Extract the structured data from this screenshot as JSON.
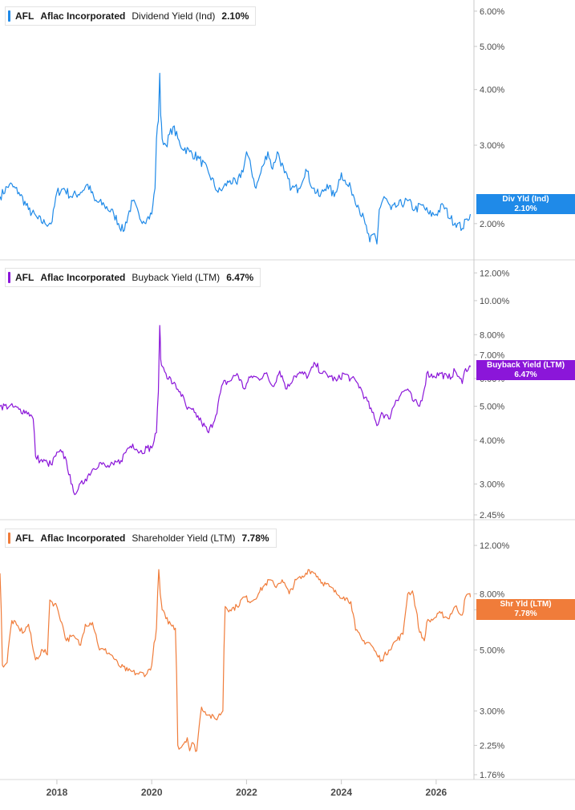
{
  "chart_data": [
    {
      "type": "line",
      "ticker": "AFL",
      "company": "Aflac Incorporated",
      "metric": "Dividend Yield (Ind)",
      "current_value": "2.10%",
      "badge": {
        "label": "Div Yld (Ind)",
        "value": "2.10%"
      },
      "color": "#1f8ae8",
      "yscale": "log",
      "ylim": [
        1.7,
        6.2
      ],
      "y_ticks": [
        {
          "value": 6,
          "label": "6.00%"
        },
        {
          "value": 5,
          "label": "5.00%"
        },
        {
          "value": 4,
          "label": "4.00%"
        },
        {
          "value": 3,
          "label": "3.00%"
        },
        {
          "value": 2,
          "label": "2.00%"
        }
      ],
      "x": [
        2016.8,
        2017.0,
        2017.2,
        2017.4,
        2017.6,
        2017.75,
        2017.9,
        2018.0,
        2018.15,
        2018.3,
        2018.5,
        2018.65,
        2018.8,
        2019.0,
        2019.2,
        2019.4,
        2019.6,
        2019.75,
        2019.9,
        2020.0,
        2020.07,
        2020.1,
        2020.14,
        2020.17,
        2020.19,
        2020.22,
        2020.3,
        2020.45,
        2020.6,
        2020.8,
        2021.0,
        2021.2,
        2021.4,
        2021.5,
        2021.65,
        2021.8,
        2021.95,
        2022.0,
        2022.2,
        2022.35,
        2022.45,
        2022.55,
        2022.65,
        2022.8,
        2022.95,
        2023.1,
        2023.25,
        2023.4,
        2023.55,
        2023.7,
        2023.85,
        2024.0,
        2024.1,
        2024.2,
        2024.35,
        2024.5,
        2024.6,
        2024.7,
        2024.75,
        2024.8,
        2024.9,
        2025.05,
        2025.2,
        2025.4,
        2025.55,
        2025.7,
        2025.85,
        2026.0,
        2026.15,
        2026.3,
        2026.45,
        2026.55,
        2026.65,
        2026.72
      ],
      "y": [
        2.3,
        2.45,
        2.35,
        2.15,
        2.05,
        2.0,
        2.02,
        2.35,
        2.4,
        2.3,
        2.35,
        2.45,
        2.25,
        2.2,
        2.1,
        1.92,
        2.25,
        2.05,
        2.05,
        2.1,
        2.4,
        3.1,
        3.4,
        4.35,
        3.5,
        3.1,
        3.0,
        3.3,
        3.0,
        2.9,
        2.8,
        2.6,
        2.35,
        2.4,
        2.5,
        2.45,
        2.7,
        2.9,
        2.4,
        2.7,
        2.9,
        2.65,
        2.9,
        2.6,
        2.4,
        2.4,
        2.65,
        2.4,
        2.3,
        2.45,
        2.3,
        2.6,
        2.45,
        2.4,
        2.2,
        2.0,
        1.82,
        1.9,
        1.8,
        2.15,
        2.3,
        2.15,
        2.2,
        2.25,
        2.15,
        2.2,
        2.1,
        2.1,
        2.2,
        2.05,
        2.0,
        1.95,
        2.05,
        2.1
      ]
    },
    {
      "type": "line",
      "ticker": "AFL",
      "company": "Aflac Incorporated",
      "metric": "Buyback Yield (LTM)",
      "current_value": "6.47%",
      "badge": {
        "label": "Buyback Yield (LTM)",
        "value": "6.47%"
      },
      "color": "#8b16d9",
      "yscale": "log",
      "ylim": [
        2.45,
        12.6
      ],
      "y_ticks": [
        {
          "value": 12,
          "label": "12.00%"
        },
        {
          "value": 10,
          "label": "10.00%"
        },
        {
          "value": 8,
          "label": "8.00%"
        },
        {
          "value": 7,
          "label": "7.00%"
        },
        {
          "value": 6,
          "label": "6.00%"
        },
        {
          "value": 5,
          "label": "5.00%"
        },
        {
          "value": 4,
          "label": "4.00%"
        },
        {
          "value": 3,
          "label": "3.00%"
        },
        {
          "value": 2.45,
          "label": "2.45%"
        }
      ],
      "x": [
        2016.8,
        2017.0,
        2017.2,
        2017.4,
        2017.5,
        2017.55,
        2017.65,
        2017.8,
        2017.9,
        2017.95,
        2018.1,
        2018.2,
        2018.3,
        2018.35,
        2018.45,
        2018.6,
        2018.75,
        2018.9,
        2019.05,
        2019.2,
        2019.35,
        2019.5,
        2019.6,
        2019.75,
        2019.9,
        2020.0,
        2020.1,
        2020.14,
        2020.17,
        2020.19,
        2020.22,
        2020.3,
        2020.45,
        2020.6,
        2020.75,
        2020.9,
        2021.05,
        2021.2,
        2021.35,
        2021.5,
        2021.65,
        2021.8,
        2021.95,
        2022.1,
        2022.25,
        2022.4,
        2022.55,
        2022.7,
        2022.85,
        2023.0,
        2023.15,
        2023.3,
        2023.45,
        2023.6,
        2023.75,
        2023.9,
        2024.05,
        2024.2,
        2024.35,
        2024.5,
        2024.65,
        2024.75,
        2024.85,
        2025.0,
        2025.15,
        2025.3,
        2025.4,
        2025.5,
        2025.65,
        2025.75,
        2025.8,
        2025.95,
        2026.1,
        2026.25,
        2026.4,
        2026.5,
        2026.55,
        2026.62,
        2026.7,
        2026.72
      ],
      "y": [
        5.0,
        5.0,
        4.9,
        4.8,
        4.6,
        3.6,
        3.5,
        3.45,
        3.4,
        3.6,
        3.7,
        3.5,
        3.0,
        2.85,
        2.9,
        3.1,
        3.3,
        3.45,
        3.35,
        3.4,
        3.5,
        3.8,
        3.9,
        3.7,
        3.8,
        3.8,
        4.2,
        5.5,
        8.5,
        6.8,
        6.5,
        6.2,
        5.8,
        5.5,
        4.9,
        4.8,
        4.5,
        4.2,
        4.7,
        5.8,
        5.9,
        6.2,
        5.6,
        6.1,
        6.0,
        6.2,
        5.7,
        6.3,
        5.6,
        6.1,
        6.2,
        6.1,
        6.6,
        6.2,
        6.1,
        5.9,
        6.2,
        6.0,
        5.8,
        5.3,
        4.8,
        4.4,
        4.8,
        4.6,
        5.2,
        5.5,
        5.6,
        5.2,
        5.0,
        5.6,
        6.2,
        6.1,
        6.2,
        6.0,
        6.3,
        6.0,
        5.8,
        6.4,
        6.5,
        6.47
      ]
    },
    {
      "type": "line",
      "ticker": "AFL",
      "company": "Aflac Incorporated",
      "metric": "Shareholder Yield (LTM)",
      "current_value": "7.78%",
      "badge": {
        "label": "Shr Yld (LTM)",
        "value": "7.78%"
      },
      "color": "#f07c3a",
      "yscale": "log",
      "ylim": [
        1.76,
        14.2
      ],
      "y_ticks": [
        {
          "value": 12,
          "label": "12.00%"
        },
        {
          "value": 8,
          "label": "8.00%"
        },
        {
          "value": 7,
          "label": "7.00%"
        },
        {
          "value": 5,
          "label": "5.00%"
        },
        {
          "value": 3,
          "label": "3.00%"
        },
        {
          "value": 2.25,
          "label": "2.25%"
        },
        {
          "value": 1.76,
          "label": "1.76%"
        }
      ],
      "x": [
        2016.8,
        2016.85,
        2016.95,
        2017.05,
        2017.2,
        2017.3,
        2017.4,
        2017.5,
        2017.55,
        2017.7,
        2017.8,
        2017.85,
        2018.0,
        2018.1,
        2018.2,
        2018.3,
        2018.4,
        2018.5,
        2018.6,
        2018.75,
        2018.9,
        2019.0,
        2019.15,
        2019.3,
        2019.5,
        2019.7,
        2019.9,
        2020.0,
        2020.1,
        2020.15,
        2020.18,
        2020.22,
        2020.3,
        2020.4,
        2020.5,
        2020.55,
        2020.6,
        2020.75,
        2020.8,
        2020.85,
        2020.95,
        2021.05,
        2021.2,
        2021.35,
        2021.5,
        2021.55,
        2021.65,
        2021.8,
        2021.95,
        2022.1,
        2022.25,
        2022.35,
        2022.5,
        2022.6,
        2022.75,
        2022.9,
        2023.05,
        2023.2,
        2023.3,
        2023.45,
        2023.6,
        2023.75,
        2023.9,
        2024.05,
        2024.2,
        2024.3,
        2024.45,
        2024.6,
        2024.75,
        2024.85,
        2025.0,
        2025.15,
        2025.3,
        2025.4,
        2025.5,
        2025.65,
        2025.75,
        2025.8,
        2025.95,
        2026.1,
        2026.25,
        2026.4,
        2026.55,
        2026.62,
        2026.7,
        2026.72
      ],
      "y": [
        9.5,
        4.4,
        4.5,
        6.4,
        6.0,
        5.8,
        6.2,
        5.0,
        4.6,
        5.0,
        4.8,
        7.6,
        7.2,
        6.3,
        5.4,
        5.6,
        5.5,
        5.2,
        6.2,
        6.3,
        5.0,
        5.0,
        4.8,
        4.4,
        4.2,
        4.1,
        4.1,
        4.4,
        6.0,
        9.8,
        8.0,
        7.0,
        6.5,
        6.2,
        6.0,
        2.25,
        2.2,
        2.4,
        2.15,
        2.3,
        2.15,
        3.1,
        2.9,
        2.8,
        3.0,
        7.2,
        7.0,
        7.2,
        7.8,
        7.5,
        8.0,
        8.5,
        9.0,
        8.5,
        9.0,
        8.0,
        9.0,
        9.2,
        9.8,
        9.5,
        8.8,
        8.5,
        8.0,
        7.8,
        7.5,
        5.9,
        5.4,
        5.3,
        4.8,
        4.6,
        5.0,
        5.4,
        5.7,
        8.0,
        8.2,
        5.8,
        5.4,
        6.3,
        6.5,
        6.8,
        6.5,
        7.2,
        6.7,
        7.8,
        8.0,
        7.78
      ]
    }
  ],
  "x_axis": {
    "range": [
      2016.8,
      2026.78
    ],
    "ticks": [
      {
        "value": 2018,
        "label": "2018"
      },
      {
        "value": 2020,
        "label": "2020"
      },
      {
        "value": 2022,
        "label": "2022"
      },
      {
        "value": 2024,
        "label": "2024"
      },
      {
        "value": 2026,
        "label": "2026"
      }
    ]
  },
  "colors": {
    "axis": "#c8c8c8",
    "tick_text": "#4a4a4a"
  }
}
